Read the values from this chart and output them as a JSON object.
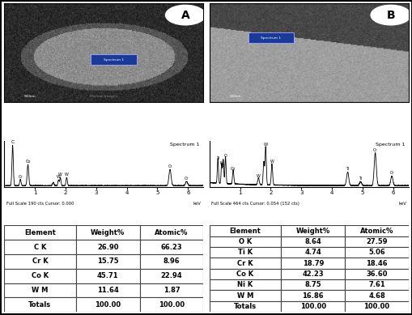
{
  "panel_A": {
    "label": "A",
    "fullscale_text": "Full Scale 190 cts Cursor: 0.000",
    "table_headers": [
      "Element",
      "Weight%",
      "Atomic%"
    ],
    "table_data": [
      [
        "C K",
        "26.90",
        "66.23"
      ],
      [
        "Cr K",
        "15.75",
        "8.96"
      ],
      [
        "Co K",
        "45.71",
        "22.94"
      ],
      [
        "W M",
        "11.64",
        "1.87"
      ],
      [
        "Totals",
        "100.00",
        "100.00"
      ]
    ]
  },
  "panel_B": {
    "label": "B",
    "fullscale_text": "Full Scale 464 cts Cursor: 0.054 (152 cts)",
    "table_headers": [
      "Element",
      "Weight%",
      "Atomic%"
    ],
    "table_data": [
      [
        "O K",
        "8.64",
        "27.59"
      ],
      [
        "Ti K",
        "4.74",
        "5.06"
      ],
      [
        "Cr K",
        "18.79",
        "18.46"
      ],
      [
        "Co K",
        "42.23",
        "36.60"
      ],
      [
        "Ni K",
        "8.75",
        "7.61"
      ],
      [
        "W M",
        "16.86",
        "4.68"
      ],
      [
        "Totals",
        "100.00",
        "100.00"
      ]
    ]
  }
}
